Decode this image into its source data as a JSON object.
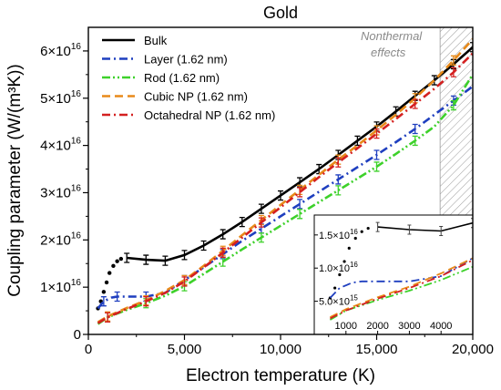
{
  "chart_data": {
    "type": "line",
    "title": "Gold",
    "xlabel": "Electron temperature (K)",
    "ylabel": "Coupling parameter (W/(m³K))",
    "xlim": [
      0,
      20000
    ],
    "ylim": [
      0,
      6.5
    ],
    "y_scale_factor": "×10¹⁶",
    "x_ticks": [
      0,
      5000,
      10000,
      15000,
      20000
    ],
    "x_tick_labels": [
      "0",
      "5,000",
      "10,000",
      "15,000",
      "20,000"
    ],
    "y_ticks": [
      0,
      1,
      2,
      3,
      4,
      5,
      6
    ],
    "y_tick_labels": [
      "0",
      "1×10",
      "2×10",
      "3×10",
      "4×10",
      "5×10",
      "6×10"
    ],
    "y_tick_exponent": "16",
    "legend_position": "top-left",
    "grid": false,
    "annotation": {
      "line1": "Nonthermal",
      "line2": "effects",
      "x_range": [
        18300,
        20000
      ]
    },
    "series": [
      {
        "name": "Bulk",
        "color": "#000000",
        "dash": "solid",
        "x": [
          500,
          650,
          800,
          950,
          1100,
          1300,
          1500,
          1700,
          2000,
          3000,
          4000,
          5000,
          6000,
          7000,
          8000,
          9000,
          10000,
          11000,
          12000,
          13000,
          14000,
          15000,
          16000,
          17000,
          18000,
          19000,
          20000
        ],
        "y": [
          0.55,
          0.7,
          0.9,
          1.1,
          1.3,
          1.45,
          1.55,
          1.6,
          1.62,
          1.58,
          1.56,
          1.68,
          1.88,
          2.12,
          2.38,
          2.66,
          2.94,
          3.22,
          3.5,
          3.8,
          4.1,
          4.4,
          4.72,
          5.05,
          5.38,
          5.72,
          6.08
        ],
        "error_x": [
          2000,
          3000,
          4000,
          5000,
          6000,
          7000,
          8000,
          9000,
          10000,
          11000,
          12000,
          13000,
          14000,
          15000,
          16000,
          17000,
          18000,
          19000,
          20000
        ]
      },
      {
        "name": "Layer (1.62 nm)",
        "color": "#1f3fbf",
        "dash": "dashdot",
        "x": [
          500,
          800,
          1200,
          1500,
          2000,
          3000,
          4000,
          5000,
          6000,
          7000,
          8000,
          9000,
          10000,
          11000,
          12000,
          13000,
          14000,
          15000,
          16000,
          17000,
          18000,
          19000,
          20000
        ],
        "y": [
          0.55,
          0.7,
          0.78,
          0.8,
          0.8,
          0.8,
          0.88,
          1.15,
          1.42,
          1.7,
          1.98,
          2.24,
          2.5,
          2.76,
          3.02,
          3.28,
          3.54,
          3.8,
          4.07,
          4.35,
          4.65,
          4.95,
          5.25
        ]
      },
      {
        "name": "Rod (1.62 nm)",
        "color": "#3dd12a",
        "dash": "dashdotdot",
        "x": [
          500,
          1000,
          2000,
          3000,
          4000,
          5000,
          6000,
          7000,
          8000,
          9000,
          10000,
          11000,
          12000,
          13000,
          14000,
          15000,
          16000,
          17000,
          18000,
          19000,
          20000
        ],
        "y": [
          0.22,
          0.36,
          0.52,
          0.66,
          0.82,
          1.02,
          1.28,
          1.54,
          1.8,
          2.05,
          2.3,
          2.55,
          2.8,
          3.05,
          3.3,
          3.55,
          3.82,
          4.1,
          4.4,
          4.85,
          5.5
        ]
      },
      {
        "name": "Cubic NP (1.62 nm)",
        "color": "#e88a1a",
        "dash": "dashed",
        "x": [
          500,
          1000,
          2000,
          3000,
          4000,
          5000,
          6000,
          7000,
          8000,
          9000,
          10000,
          11000,
          12000,
          13000,
          14000,
          15000,
          16000,
          17000,
          18000,
          19000,
          20000
        ],
        "y": [
          0.26,
          0.38,
          0.56,
          0.72,
          0.92,
          1.15,
          1.45,
          1.77,
          2.1,
          2.42,
          2.74,
          3.06,
          3.38,
          3.7,
          4.0,
          4.32,
          4.65,
          5.0,
          5.38,
          5.8,
          6.25
        ]
      },
      {
        "name": "Octahedral NP (1.62 nm)",
        "color": "#d42020",
        "dash": "dashdot",
        "x": [
          500,
          1000,
          2000,
          3000,
          4000,
          5000,
          6000,
          7000,
          8000,
          9000,
          10000,
          11000,
          12000,
          13000,
          14000,
          15000,
          16000,
          17000,
          18000,
          19000,
          20000
        ],
        "y": [
          0.24,
          0.36,
          0.54,
          0.7,
          0.88,
          1.12,
          1.42,
          1.73,
          2.05,
          2.37,
          2.69,
          3.01,
          3.33,
          3.64,
          3.94,
          4.25,
          4.56,
          4.88,
          5.2,
          5.55,
          5.95
        ]
      }
    ],
    "inset": {
      "xlim": [
        0,
        5000
      ],
      "ylim": [
        0,
        1.8
      ],
      "x_ticks": [
        1000,
        2000,
        3000,
        4000
      ],
      "x_tick_labels": [
        "1000",
        "2000",
        "3000",
        "4000"
      ],
      "y_ticks": [
        0.5,
        1.0,
        1.5
      ],
      "y_tick_labels": [
        "5.0×10",
        "1.0×10",
        "1.5×10"
      ],
      "y_tick_exponents": [
        "15",
        "16",
        "16"
      ]
    }
  }
}
